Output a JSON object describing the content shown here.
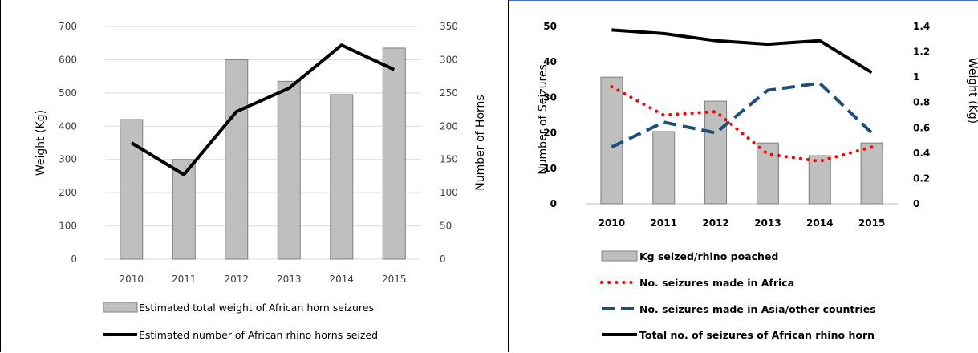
{
  "chart_data": [
    {
      "type": "bar",
      "categories": [
        "2010",
        "2011",
        "2012",
        "2013",
        "2014",
        "2015"
      ],
      "series": [
        {
          "name": "Estimated total weight of African horn seizures",
          "kind": "bar",
          "axis": "left",
          "values": [
            420,
            300,
            600,
            535,
            495,
            635
          ],
          "color": "#bfbfbf"
        },
        {
          "name": "Estimated number of African rhino horns seized",
          "kind": "line",
          "axis": "right",
          "values": [
            175,
            127,
            222,
            257,
            322,
            285
          ],
          "color": "#000000"
        }
      ],
      "ylabel": "Weight (Kg)",
      "y2label": "Number of Horns",
      "ylim": [
        0,
        700
      ],
      "y2lim": [
        0,
        350
      ],
      "yticks": [
        "700",
        "600",
        "500",
        "400",
        "300",
        "200",
        "100",
        "0"
      ],
      "y2ticks": [
        "350",
        "300",
        "250",
        "200",
        "150",
        "100",
        "50",
        "0"
      ],
      "grid": true,
      "legend": "bottom"
    },
    {
      "type": "bar",
      "categories": [
        "2010",
        "2011",
        "2012",
        "2013",
        "2014",
        "2015"
      ],
      "series": [
        {
          "name": "Kg seized/rhino poached",
          "kind": "bar",
          "axis": "right",
          "values": [
            1.0,
            0.57,
            0.81,
            0.48,
            0.38,
            0.48
          ],
          "color": "#bfbfbf"
        },
        {
          "name": "No. seizures made in Africa",
          "kind": "line",
          "style": "dotted",
          "axis": "left",
          "values": [
            33,
            25,
            26,
            14,
            12,
            16
          ],
          "color": "#ff0000"
        },
        {
          "name": "No. seizures made in Asia/other countries",
          "kind": "line",
          "style": "dashed",
          "axis": "left",
          "values": [
            16,
            23,
            20,
            32,
            34,
            20
          ],
          "color": "#1f4e79"
        },
        {
          "name": "Total no. of seizures of African rhino horn",
          "kind": "line",
          "style": "solid",
          "axis": "left",
          "values": [
            49,
            48,
            46,
            45,
            46,
            37
          ],
          "color": "#000000"
        }
      ],
      "ylabel": "Number of Seizures",
      "y2label": "Weight (Kg)",
      "ylim": [
        0,
        50
      ],
      "y2lim": [
        0,
        1.4
      ],
      "yticks": [
        "50",
        "40",
        "30",
        "20",
        "10",
        "0"
      ],
      "y2ticks": [
        "1.4",
        "1.2",
        "1",
        "0.8",
        "0.6",
        "0.4",
        "0.2",
        "0"
      ],
      "grid": false,
      "legend": "bottom"
    }
  ]
}
